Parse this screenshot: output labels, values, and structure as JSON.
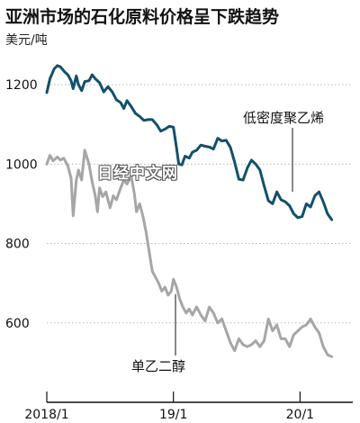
{
  "chart_data": {
    "type": "line",
    "title": "亚洲市场的石化原料价格呈下跌趋势",
    "ylabel": "美元/吨",
    "ylim": [
      400,
      1300
    ],
    "yticks": [
      600,
      800,
      1000,
      1200
    ],
    "xlim": [
      0,
      29
    ],
    "xticks": [
      {
        "x": 0,
        "label": "2018/1"
      },
      {
        "x": 12,
        "label": "19/1"
      },
      {
        "x": 24,
        "label": "20/1"
      }
    ],
    "grid": true,
    "watermark": "日经中文网",
    "series": [
      {
        "name": "低密度聚乙烯",
        "color": "#14506b",
        "points": [
          [
            0,
            1180
          ],
          [
            0.3,
            1215
          ],
          [
            0.7,
            1240
          ],
          [
            1,
            1248
          ],
          [
            1.3,
            1245
          ],
          [
            1.7,
            1232
          ],
          [
            2,
            1225
          ],
          [
            2.3,
            1210
          ],
          [
            2.5,
            1190
          ],
          [
            2.8,
            1222
          ],
          [
            3,
            1200
          ],
          [
            3.3,
            1185
          ],
          [
            3.6,
            1208
          ],
          [
            4,
            1210
          ],
          [
            4.3,
            1225
          ],
          [
            4.6,
            1215
          ],
          [
            5,
            1205
          ],
          [
            5.4,
            1182
          ],
          [
            5.8,
            1195
          ],
          [
            6.2,
            1182
          ],
          [
            6.6,
            1162
          ],
          [
            7,
            1155
          ],
          [
            7.3,
            1140
          ],
          [
            7.6,
            1160
          ],
          [
            8,
            1145
          ],
          [
            8.4,
            1128
          ],
          [
            8.8,
            1120
          ],
          [
            9.2,
            1110
          ],
          [
            9.6,
            1112
          ],
          [
            10,
            1112
          ],
          [
            10.4,
            1100
          ],
          [
            10.8,
            1083
          ],
          [
            11.2,
            1088
          ],
          [
            11.6,
            1095
          ],
          [
            12,
            1093
          ],
          [
            12.3,
            1040
          ],
          [
            12.5,
            1000
          ],
          [
            12.8,
            998
          ],
          [
            13.1,
            1020
          ],
          [
            13.5,
            1015
          ],
          [
            13.8,
            1030
          ],
          [
            14.2,
            1035
          ],
          [
            14.6,
            1048
          ],
          [
            15,
            1045
          ],
          [
            15.4,
            1043
          ],
          [
            15.8,
            1038
          ],
          [
            16.2,
            1065
          ],
          [
            16.6,
            1058
          ],
          [
            17,
            1060
          ],
          [
            17.4,
            1042
          ],
          [
            17.8,
            1005
          ],
          [
            18.2,
            962
          ],
          [
            18.6,
            960
          ],
          [
            19,
            990
          ],
          [
            19.4,
            1010
          ],
          [
            19.8,
            1000
          ],
          [
            20.2,
            985
          ],
          [
            20.6,
            945
          ],
          [
            21,
            908
          ],
          [
            21.4,
            900
          ],
          [
            21.8,
            930
          ],
          [
            22.2,
            910
          ],
          [
            22.6,
            905
          ],
          [
            23,
            895
          ],
          [
            23.4,
            875
          ],
          [
            23.8,
            865
          ],
          [
            24.2,
            868
          ],
          [
            24.6,
            900
          ],
          [
            25,
            892
          ],
          [
            25.4,
            920
          ],
          [
            25.8,
            930
          ],
          [
            26.2,
            905
          ],
          [
            26.6,
            875
          ],
          [
            27,
            860
          ]
        ]
      },
      {
        "name": "单乙二醇",
        "color": "#a6a6a6",
        "points": [
          [
            0,
            1000
          ],
          [
            0.3,
            1022
          ],
          [
            0.6,
            1008
          ],
          [
            1,
            1018
          ],
          [
            1.3,
            1010
          ],
          [
            1.6,
            1015
          ],
          [
            2,
            995
          ],
          [
            2.3,
            965
          ],
          [
            2.5,
            870
          ],
          [
            2.8,
            960
          ],
          [
            3,
            985
          ],
          [
            3.3,
            960
          ],
          [
            3.6,
            1035
          ],
          [
            4,
            1000
          ],
          [
            4.3,
            955
          ],
          [
            4.6,
            920
          ],
          [
            4.8,
            880
          ],
          [
            5,
            940
          ],
          [
            5.3,
            918
          ],
          [
            5.6,
            930
          ],
          [
            6,
            890
          ],
          [
            6.3,
            920
          ],
          [
            6.6,
            910
          ],
          [
            7,
            940
          ],
          [
            7.3,
            960
          ],
          [
            7.6,
            950
          ],
          [
            8,
            970
          ],
          [
            8.3,
            925
          ],
          [
            8.5,
            880
          ],
          [
            8.8,
            900
          ],
          [
            9.1,
            870
          ],
          [
            9.4,
            830
          ],
          [
            9.7,
            780
          ],
          [
            10,
            730
          ],
          [
            10.3,
            715
          ],
          [
            10.6,
            700
          ],
          [
            10.9,
            680
          ],
          [
            11.2,
            690
          ],
          [
            11.5,
            670
          ],
          [
            11.8,
            680
          ],
          [
            12,
            710
          ],
          [
            12.3,
            690
          ],
          [
            12.6,
            660
          ],
          [
            12.9,
            640
          ],
          [
            13.2,
            625
          ],
          [
            13.5,
            635
          ],
          [
            13.8,
            620
          ],
          [
            14.2,
            640
          ],
          [
            14.6,
            620
          ],
          [
            15,
            605
          ],
          [
            15.4,
            640
          ],
          [
            15.8,
            625
          ],
          [
            16.2,
            600
          ],
          [
            16.6,
            610
          ],
          [
            17,
            580
          ],
          [
            17.4,
            550
          ],
          [
            17.8,
            530
          ],
          [
            18.2,
            560
          ],
          [
            18.6,
            545
          ],
          [
            19,
            540
          ],
          [
            19.4,
            545
          ],
          [
            19.8,
            555
          ],
          [
            20.2,
            540
          ],
          [
            20.6,
            555
          ],
          [
            21,
            610
          ],
          [
            21.4,
            580
          ],
          [
            21.8,
            595
          ],
          [
            22.2,
            560
          ],
          [
            22.6,
            560
          ],
          [
            23,
            540
          ],
          [
            23.4,
            570
          ],
          [
            23.8,
            580
          ],
          [
            24.2,
            590
          ],
          [
            24.6,
            595
          ],
          [
            25,
            610
          ],
          [
            25.4,
            590
          ],
          [
            25.8,
            575
          ],
          [
            26.2,
            540
          ],
          [
            26.6,
            520
          ],
          [
            27,
            515
          ]
        ]
      }
    ]
  }
}
